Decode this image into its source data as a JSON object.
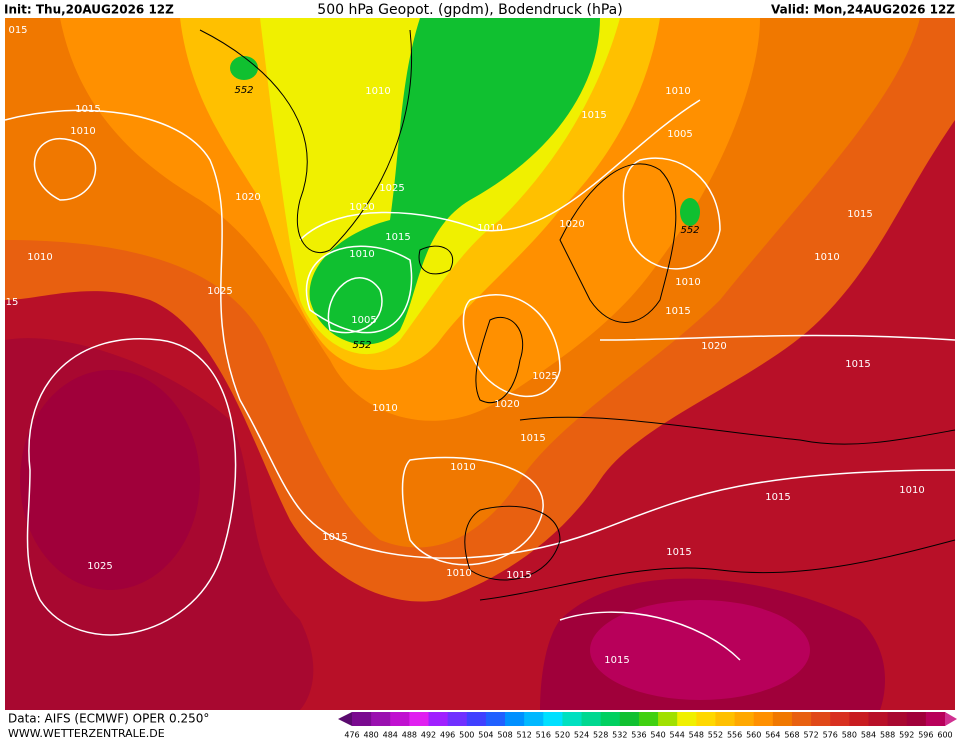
{
  "header": {
    "init": "Init: Thu,20AUG2026 12Z",
    "title": "500 hPa Geopot. (gpdm), Bodendruck (hPa)",
    "valid": "Valid: Mon,24AUG2026 12Z"
  },
  "footer": {
    "data": "Data: AIFS (ECMWF) OPER 0.250°",
    "site": "WWW.WETTERZENTRALE.DE"
  },
  "isobar_labels": [
    "015",
    "1015",
    "1010",
    "1020",
    "1010",
    "15",
    "1025",
    "1010",
    "1025",
    "1020",
    "1015",
    "1010",
    "1005",
    "1010",
    "1015",
    "1010",
    "1005",
    "1020",
    "1015",
    "1010",
    "1010",
    "1015",
    "1020",
    "1015",
    "1025",
    "1020",
    "1010",
    "1015",
    "1010",
    "1015",
    "1010",
    "1015",
    "1025",
    "1010",
    "1015",
    "1015",
    "1015"
  ],
  "height_labels": [
    "552",
    "552",
    "552"
  ],
  "colorbar": {
    "ticks": [
      476,
      480,
      484,
      488,
      492,
      496,
      500,
      504,
      508,
      512,
      516,
      520,
      524,
      528,
      532,
      536,
      540,
      544,
      548,
      552,
      556,
      560,
      564,
      568,
      572,
      576,
      580,
      584,
      588,
      592,
      596,
      600
    ],
    "colors": [
      "#5a0a6e",
      "#7a0a90",
      "#9a10b0",
      "#c010d0",
      "#e020f0",
      "#a020ff",
      "#7030ff",
      "#4040ff",
      "#2060ff",
      "#0090ff",
      "#00b8ff",
      "#00e0ff",
      "#00e0c0",
      "#00d890",
      "#00d060",
      "#10c030",
      "#40d010",
      "#a0e000",
      "#f0f000",
      "#ffd800",
      "#ffc000",
      "#ffa800",
      "#ff9000",
      "#f07800",
      "#e86010",
      "#e04818",
      "#d83020",
      "#c81c20",
      "#b81028",
      "#a80830",
      "#a0003a",
      "#b8005a",
      "#d03090"
    ]
  }
}
